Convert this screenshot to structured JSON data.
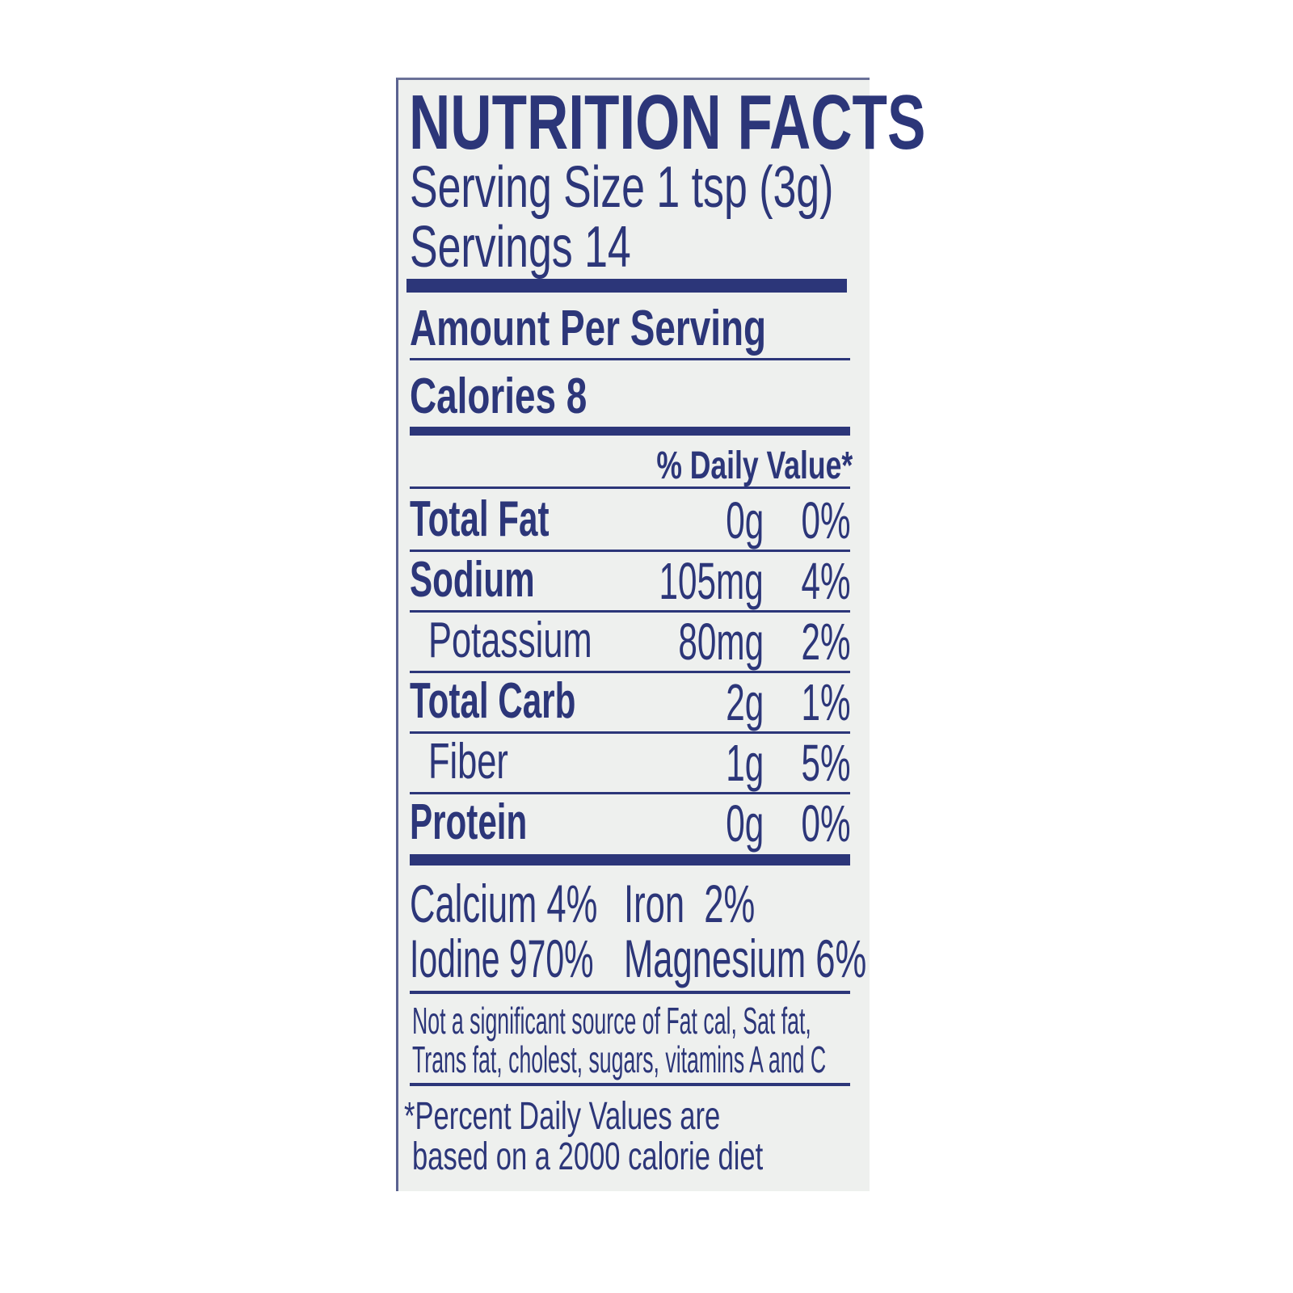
{
  "label": {
    "title": "NUTRITION FACTS",
    "serving_size": "Serving Size 1 tsp (3g)",
    "servings": "Servings 14",
    "amount_per_serving": "Amount Per Serving",
    "calories": "Calories 8",
    "daily_value_header": "% Daily Value*",
    "nutrients": [
      {
        "name": "Total Fat",
        "amount": "0g",
        "dv": "0%",
        "bold": true
      },
      {
        "name": "Sodium",
        "amount": "105mg",
        "dv": "4%",
        "bold": true
      },
      {
        "name": "Potassium",
        "amount": "80mg",
        "dv": "2%",
        "bold": false
      },
      {
        "name": "Total Carb",
        "amount": "2g",
        "dv": "1%",
        "bold": true
      },
      {
        "name": "Fiber",
        "amount": "1g",
        "dv": "5%",
        "bold": false
      },
      {
        "name": "Protein",
        "amount": "0g",
        "dv": "0%",
        "bold": true
      }
    ],
    "vitamins": {
      "calcium": "Calcium 4%",
      "iron": "Iron  2%",
      "iodine": "Iodine 970%",
      "magnesium": "Magnesium 6%"
    },
    "not_significant": [
      "Not a significant source of Fat cal, Sat fat,",
      "Trans fat, cholest, sugars, vitamins A and C"
    ],
    "footnote": [
      "*Percent Daily Values are",
      "based on a 2000 calorie diet"
    ]
  },
  "colors": {
    "ink": "#2c3679",
    "panel": "#eef0ee"
  }
}
